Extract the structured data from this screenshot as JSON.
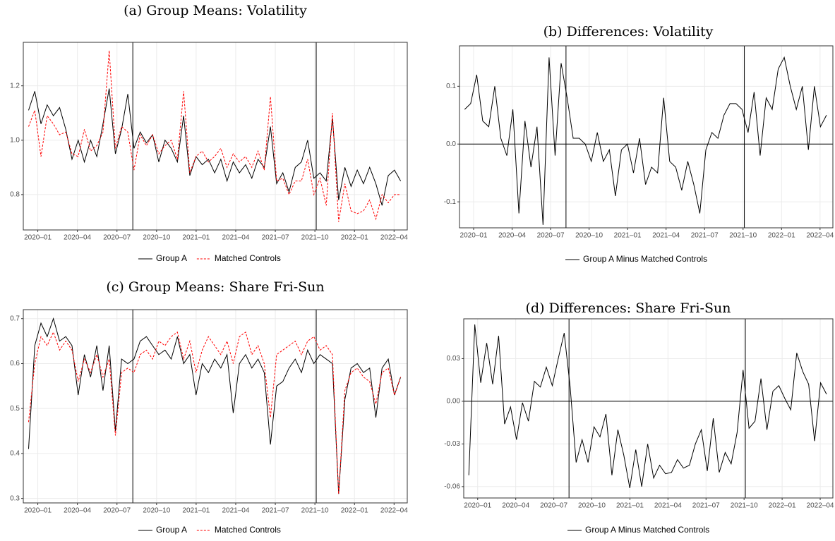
{
  "chart_data": [
    {
      "type": "line",
      "title": "(a) Group Means: Volatility",
      "grid": true,
      "x": [
        -0.7,
        -0.23,
        0.24,
        0.71,
        1.18,
        1.65,
        2.12,
        2.59,
        3.06,
        3.53,
        4.0,
        4.47,
        4.94,
        5.41,
        5.88,
        6.35,
        6.82,
        7.29,
        7.76,
        8.23,
        8.7,
        9.17,
        9.64,
        10.11,
        10.58,
        11.05,
        11.52,
        11.99,
        12.46,
        12.93,
        13.4,
        13.87,
        14.34,
        14.81,
        15.28,
        15.75,
        16.22,
        16.69,
        17.16,
        17.63,
        18.1,
        18.57,
        19.04,
        19.51,
        19.98,
        20.45,
        20.92,
        21.39,
        21.86,
        22.33,
        22.8,
        23.27,
        23.74,
        24.21,
        24.68,
        25.15,
        25.62,
        26.09,
        26.56,
        27.03,
        27.5
      ],
      "xlim": [
        -1.1,
        28.0
      ],
      "xticks": [
        {
          "value": 0,
          "label": "2020–01"
        },
        {
          "value": 3,
          "label": "2020–04"
        },
        {
          "value": 6,
          "label": "2020–07"
        },
        {
          "value": 9,
          "label": "2020–10"
        },
        {
          "value": 12,
          "label": "2021–01"
        },
        {
          "value": 15,
          "label": "2021–04"
        },
        {
          "value": 18,
          "label": "2021–07"
        },
        {
          "value": 21,
          "label": "2021–10"
        },
        {
          "value": 24,
          "label": "2022–01"
        },
        {
          "value": 27,
          "label": "2022–04"
        }
      ],
      "ylim": [
        0.67,
        1.36
      ],
      "yticks": [
        0.8,
        {
          "value": 1.0,
          "label": "1.0"
        },
        1.2
      ],
      "vlines": [
        7.2,
        21.1
      ],
      "series": [
        {
          "name": "Group A",
          "color": "#000000",
          "linestyle": "solid",
          "values": [
            1.11,
            1.18,
            1.06,
            1.13,
            1.09,
            1.12,
            1.04,
            0.93,
            1.0,
            0.92,
            1.0,
            0.94,
            1.06,
            1.19,
            0.95,
            1.04,
            1.17,
            0.97,
            1.03,
            0.99,
            1.02,
            0.92,
            1.0,
            0.97,
            0.92,
            1.09,
            0.87,
            0.94,
            0.91,
            0.93,
            0.88,
            0.93,
            0.85,
            0.92,
            0.88,
            0.91,
            0.86,
            0.93,
            0.9,
            1.05,
            0.84,
            0.88,
            0.81,
            0.9,
            0.92,
            1.0,
            0.86,
            0.88,
            0.85,
            1.08,
            0.78,
            0.9,
            0.83,
            0.89,
            0.84,
            0.9,
            0.84,
            0.76,
            0.87,
            0.89,
            0.85
          ]
        },
        {
          "name": "Matched Controls",
          "color": "#ff0000",
          "linestyle": "dashed",
          "values": [
            1.05,
            1.11,
            0.94,
            1.09,
            1.06,
            1.02,
            1.03,
            0.95,
            0.94,
            1.04,
            0.96,
            0.98,
            1.03,
            1.33,
            0.97,
            1.05,
            1.03,
            0.89,
            1.02,
            0.98,
            1.02,
            0.95,
            0.98,
            1.0,
            0.93,
            1.18,
            0.88,
            0.94,
            0.96,
            0.92,
            0.94,
            0.97,
            0.9,
            0.95,
            0.92,
            0.94,
            0.9,
            0.96,
            0.89,
            1.16,
            0.85,
            0.86,
            0.8,
            0.85,
            0.85,
            0.93,
            0.8,
            0.86,
            0.76,
            1.1,
            0.7,
            0.84,
            0.74,
            0.73,
            0.74,
            0.78,
            0.71,
            0.8,
            0.77,
            0.8,
            0.8
          ]
        }
      ]
    },
    {
      "type": "line",
      "title": "(b) Differences: Volatility",
      "grid": true,
      "x": [
        -0.7,
        -0.23,
        0.24,
        0.71,
        1.18,
        1.65,
        2.12,
        2.59,
        3.06,
        3.53,
        4.0,
        4.47,
        4.94,
        5.41,
        5.88,
        6.35,
        6.82,
        7.29,
        7.76,
        8.23,
        8.7,
        9.17,
        9.64,
        10.11,
        10.58,
        11.05,
        11.52,
        11.99,
        12.46,
        12.93,
        13.4,
        13.87,
        14.34,
        14.81,
        15.28,
        15.75,
        16.22,
        16.69,
        17.16,
        17.63,
        18.1,
        18.57,
        19.04,
        19.51,
        19.98,
        20.45,
        20.92,
        21.39,
        21.86,
        22.33,
        22.8,
        23.27,
        23.74,
        24.21,
        24.68,
        25.15,
        25.62,
        26.09,
        26.56,
        27.03,
        27.5
      ],
      "xlim": [
        -1.1,
        28.0
      ],
      "xticks": [
        {
          "value": 0,
          "label": "2020–01"
        },
        {
          "value": 3,
          "label": "2020–04"
        },
        {
          "value": 6,
          "label": "2020–07"
        },
        {
          "value": 9,
          "label": "2020–10"
        },
        {
          "value": 12,
          "label": "2021–01"
        },
        {
          "value": 15,
          "label": "2021–04"
        },
        {
          "value": 18,
          "label": "2021–07"
        },
        {
          "value": 21,
          "label": "2021–10"
        },
        {
          "value": 24,
          "label": "2022–01"
        },
        {
          "value": 27,
          "label": "2022–04"
        }
      ],
      "ylim": [
        -0.145,
        0.17
      ],
      "yticks": [
        {
          "value": -0.1,
          "label": "-0.1"
        },
        {
          "value": 0,
          "label": "0.0"
        },
        0.1
      ],
      "vlines": [
        7.2,
        21.1
      ],
      "hline": 0,
      "series": [
        {
          "name": "Group A Minus Matched Controls",
          "color": "#000000",
          "linestyle": "solid",
          "values": [
            0.06,
            0.07,
            0.12,
            0.04,
            0.03,
            0.1,
            0.01,
            -0.02,
            0.06,
            -0.12,
            0.04,
            -0.04,
            0.03,
            -0.14,
            0.15,
            -0.02,
            0.14,
            0.08,
            0.01,
            0.01,
            0.0,
            -0.03,
            0.02,
            -0.03,
            -0.01,
            -0.09,
            -0.01,
            0.0,
            -0.05,
            0.01,
            -0.07,
            -0.04,
            -0.05,
            0.08,
            -0.03,
            -0.04,
            -0.08,
            -0.03,
            -0.07,
            -0.12,
            -0.01,
            0.02,
            0.01,
            0.05,
            0.07,
            0.07,
            0.06,
            0.02,
            0.09,
            -0.02,
            0.08,
            0.06,
            0.13,
            0.15,
            0.1,
            0.06,
            0.1,
            -0.01,
            0.1,
            0.03,
            0.05
          ]
        }
      ]
    },
    {
      "type": "line",
      "title": "(c) Group Means: Share Fri-Sun",
      "grid": true,
      "x": [
        -0.7,
        -0.23,
        0.24,
        0.71,
        1.18,
        1.65,
        2.12,
        2.59,
        3.06,
        3.53,
        4.0,
        4.47,
        4.94,
        5.41,
        5.88,
        6.35,
        6.82,
        7.29,
        7.76,
        8.23,
        8.7,
        9.17,
        9.64,
        10.11,
        10.58,
        11.05,
        11.52,
        11.99,
        12.46,
        12.93,
        13.4,
        13.87,
        14.34,
        14.81,
        15.28,
        15.75,
        16.22,
        16.69,
        17.16,
        17.63,
        18.1,
        18.57,
        19.04,
        19.51,
        19.98,
        20.45,
        20.92,
        21.39,
        21.86,
        22.33,
        22.8,
        23.27,
        23.74,
        24.21,
        24.68,
        25.15,
        25.62,
        26.09,
        26.56,
        27.03,
        27.5
      ],
      "xlim": [
        -1.1,
        28.0
      ],
      "xticks": [
        {
          "value": 0,
          "label": "2020–01"
        },
        {
          "value": 3,
          "label": "2020–04"
        },
        {
          "value": 6,
          "label": "2020–07"
        },
        {
          "value": 9,
          "label": "2020–10"
        },
        {
          "value": 12,
          "label": "2021–01"
        },
        {
          "value": 15,
          "label": "2021–04"
        },
        {
          "value": 18,
          "label": "2021–07"
        },
        {
          "value": 21,
          "label": "2021–10"
        },
        {
          "value": 24,
          "label": "2022–01"
        },
        {
          "value": 27,
          "label": "2022–04"
        }
      ],
      "ylim": [
        0.29,
        0.72
      ],
      "yticks": [
        0.3,
        0.4,
        0.5,
        0.6,
        0.7
      ],
      "vlines": [
        7.2,
        21.1
      ],
      "series": [
        {
          "name": "Group A",
          "color": "#000000",
          "linestyle": "solid",
          "values": [
            0.41,
            0.64,
            0.69,
            0.66,
            0.7,
            0.65,
            0.66,
            0.64,
            0.53,
            0.62,
            0.57,
            0.64,
            0.54,
            0.64,
            0.45,
            0.61,
            0.6,
            0.61,
            0.65,
            0.66,
            0.64,
            0.62,
            0.63,
            0.61,
            0.66,
            0.6,
            0.62,
            0.53,
            0.6,
            0.58,
            0.61,
            0.59,
            0.62,
            0.49,
            0.6,
            0.62,
            0.59,
            0.61,
            0.58,
            0.42,
            0.55,
            0.56,
            0.59,
            0.61,
            0.58,
            0.63,
            0.6,
            0.62,
            0.61,
            0.6,
            0.31,
            0.52,
            0.59,
            0.6,
            0.58,
            0.59,
            0.48,
            0.59,
            0.61,
            0.53,
            0.57
          ]
        },
        {
          "name": "Matched Controls",
          "color": "#ff0000",
          "linestyle": "dashed",
          "values": [
            0.47,
            0.6,
            0.66,
            0.64,
            0.67,
            0.63,
            0.65,
            0.63,
            0.56,
            0.61,
            0.58,
            0.62,
            0.57,
            0.61,
            0.44,
            0.58,
            0.59,
            0.58,
            0.62,
            0.63,
            0.61,
            0.65,
            0.64,
            0.66,
            0.67,
            0.61,
            0.65,
            0.58,
            0.63,
            0.66,
            0.64,
            0.62,
            0.65,
            0.6,
            0.66,
            0.67,
            0.62,
            0.64,
            0.6,
            0.48,
            0.62,
            0.63,
            0.64,
            0.65,
            0.62,
            0.65,
            0.66,
            0.63,
            0.64,
            0.62,
            0.31,
            0.54,
            0.58,
            0.59,
            0.57,
            0.56,
            0.51,
            0.58,
            0.59,
            0.53,
            0.57
          ]
        }
      ]
    },
    {
      "type": "line",
      "title": "(d) Differences: Share Fri-Sun",
      "grid": true,
      "x": [
        -0.7,
        -0.23,
        0.24,
        0.71,
        1.18,
        1.65,
        2.12,
        2.59,
        3.06,
        3.53,
        4.0,
        4.47,
        4.94,
        5.41,
        5.88,
        6.35,
        6.82,
        7.29,
        7.76,
        8.23,
        8.7,
        9.17,
        9.64,
        10.11,
        10.58,
        11.05,
        11.52,
        11.99,
        12.46,
        12.93,
        13.4,
        13.87,
        14.34,
        14.81,
        15.28,
        15.75,
        16.22,
        16.69,
        17.16,
        17.63,
        18.1,
        18.57,
        19.04,
        19.51,
        19.98,
        20.45,
        20.92,
        21.39,
        21.86,
        22.33,
        22.8,
        23.27,
        23.74,
        24.21,
        24.68,
        25.15,
        25.62,
        26.09,
        26.56,
        27.03,
        27.5
      ],
      "xlim": [
        -1.1,
        28.0
      ],
      "xticks": [
        {
          "value": 0,
          "label": "2020–01"
        },
        {
          "value": 3,
          "label": "2020–04"
        },
        {
          "value": 6,
          "label": "2020–07"
        },
        {
          "value": 9,
          "label": "2020–10"
        },
        {
          "value": 12,
          "label": "2021–01"
        },
        {
          "value": 15,
          "label": "2021–04"
        },
        {
          "value": 18,
          "label": "2021–07"
        },
        {
          "value": 21,
          "label": "2021–10"
        },
        {
          "value": 24,
          "label": "2022–01"
        },
        {
          "value": 27,
          "label": "2022–04"
        }
      ],
      "ylim": [
        -0.068,
        0.058
      ],
      "yticks": [
        {
          "value": -0.06,
          "label": "-0.06"
        },
        {
          "value": -0.03,
          "label": "-0.03"
        },
        {
          "value": 0,
          "label": "0.00"
        },
        0.03
      ],
      "vlines": [
        7.2,
        21.1
      ],
      "hline": 0,
      "series": [
        {
          "name": "Group A Minus Matched Controls",
          "color": "#000000",
          "linestyle": "solid",
          "values": [
            -0.052,
            0.054,
            0.013,
            0.041,
            0.012,
            0.046,
            -0.016,
            -0.004,
            -0.027,
            -0.001,
            -0.014,
            0.014,
            0.01,
            0.024,
            0.011,
            0.03,
            0.048,
            0.01,
            -0.043,
            -0.027,
            -0.043,
            -0.018,
            -0.025,
            -0.009,
            -0.052,
            -0.02,
            -0.038,
            -0.061,
            -0.034,
            -0.06,
            -0.03,
            -0.054,
            -0.045,
            -0.051,
            -0.05,
            -0.041,
            -0.047,
            -0.045,
            -0.03,
            -0.02,
            -0.049,
            -0.012,
            -0.05,
            -0.036,
            -0.044,
            -0.022,
            0.022,
            -0.019,
            -0.014,
            0.016,
            -0.02,
            0.007,
            0.011,
            0.002,
            -0.006,
            0.034,
            0.021,
            0.012,
            -0.028,
            0.013,
            0.005
          ]
        }
      ]
    }
  ]
}
